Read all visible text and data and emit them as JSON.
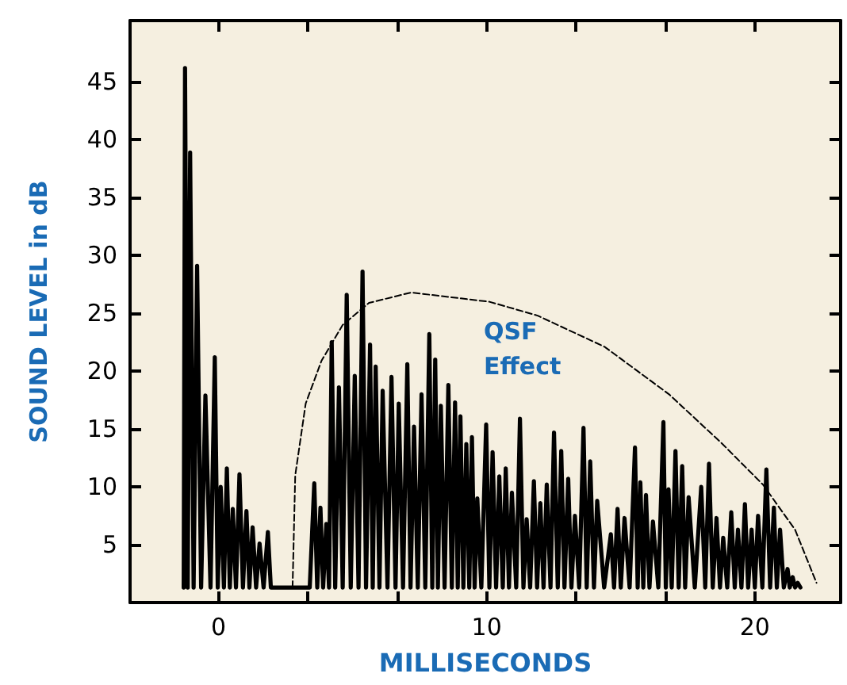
{
  "chart_data": {
    "type": "line",
    "xlabel": "MILLISECONDS",
    "ylabel": "SOUND LEVEL in dB",
    "xlim": [
      -3.3,
      23.2
    ],
    "ylim": [
      0,
      50.3
    ],
    "xticks": [
      {
        "value": 0,
        "label": "0"
      },
      {
        "value": 3.33,
        "label": null
      },
      {
        "value": 6.67,
        "label": null
      },
      {
        "value": 10,
        "label": "10"
      },
      {
        "value": 13.33,
        "label": null
      },
      {
        "value": 16.67,
        "label": null
      },
      {
        "value": 20,
        "label": "20"
      }
    ],
    "yticks": [
      5,
      10,
      15,
      20,
      25,
      30,
      35,
      40,
      45
    ],
    "grid": false,
    "marker": "none",
    "annotations": [
      "QSF\nEffect"
    ],
    "series": [
      {
        "color": "#000000",
        "line_style": "solid",
        "x": [
          -1.3,
          -1.25,
          -1.15,
          -1.06,
          -0.93,
          -0.8,
          -0.65,
          -0.49,
          -0.3,
          -0.14,
          -0.03,
          0.08,
          0.2,
          0.31,
          0.42,
          0.53,
          0.65,
          0.78,
          0.91,
          1.04,
          1.15,
          1.27,
          1.4,
          1.53,
          1.68,
          1.84,
          1.95,
          3.4,
          3.57,
          3.68,
          3.8,
          3.9,
          4.02,
          4.12,
          4.22,
          4.35,
          4.49,
          4.63,
          4.78,
          4.93,
          5.08,
          5.22,
          5.37,
          5.5,
          5.65,
          5.75,
          5.86,
          6.0,
          6.12,
          6.3,
          6.45,
          6.6,
          6.72,
          6.88,
          7.04,
          7.16,
          7.29,
          7.43,
          7.57,
          7.71,
          7.86,
          7.97,
          8.08,
          8.18,
          8.29,
          8.43,
          8.57,
          8.7,
          8.82,
          8.92,
          9.02,
          9.13,
          9.24,
          9.35,
          9.45,
          9.55,
          9.65,
          9.8,
          9.98,
          10.1,
          10.22,
          10.35,
          10.47,
          10.6,
          10.71,
          10.83,
          10.94,
          11.1,
          11.24,
          11.37,
          11.49,
          11.62,
          11.76,
          11.88,
          12.0,
          12.12,
          12.24,
          12.38,
          12.51,
          12.65,
          12.78,
          12.9,
          13.04,
          13.16,
          13.29,
          13.45,
          13.61,
          13.73,
          13.86,
          14.0,
          14.12,
          14.38,
          14.63,
          14.75,
          14.88,
          15.0,
          15.14,
          15.33,
          15.53,
          15.63,
          15.73,
          15.84,
          15.94,
          16.07,
          16.2,
          16.4,
          16.59,
          16.68,
          16.78,
          16.9,
          17.04,
          17.16,
          17.29,
          17.4,
          17.53,
          17.76,
          18.0,
          18.15,
          18.29,
          18.43,
          18.57,
          18.7,
          18.82,
          18.97,
          19.12,
          19.25,
          19.37,
          19.5,
          19.63,
          19.75,
          19.88,
          20.0,
          20.12,
          20.28,
          20.43,
          20.57,
          20.71,
          20.82,
          20.94,
          21.08,
          21.22,
          21.3,
          21.41,
          21.5,
          21.6,
          21.7
        ],
        "values": [
          1.3,
          46.2,
          1.3,
          38.9,
          1.3,
          29.1,
          1.3,
          17.9,
          1.3,
          21.2,
          1.3,
          10.0,
          1.3,
          11.6,
          1.3,
          8.1,
          1.3,
          11.1,
          1.3,
          7.9,
          1.3,
          6.5,
          1.3,
          5.1,
          1.3,
          6.1,
          1.3,
          1.3,
          10.3,
          1.3,
          8.2,
          1.3,
          6.8,
          1.3,
          22.5,
          1.3,
          18.6,
          1.3,
          26.6,
          1.3,
          19.6,
          1.3,
          28.6,
          1.3,
          22.3,
          1.3,
          20.4,
          1.3,
          18.3,
          1.3,
          19.5,
          1.3,
          17.2,
          1.3,
          20.6,
          1.3,
          15.2,
          1.3,
          18.0,
          1.3,
          23.2,
          1.3,
          21.0,
          1.3,
          17.0,
          1.3,
          18.8,
          1.3,
          17.3,
          1.3,
          16.1,
          1.3,
          13.7,
          1.3,
          14.3,
          1.3,
          9.0,
          1.3,
          15.4,
          1.3,
          13.0,
          1.3,
          10.9,
          1.3,
          11.6,
          1.3,
          9.5,
          1.3,
          15.9,
          1.3,
          7.2,
          1.3,
          10.5,
          1.3,
          8.6,
          1.3,
          10.2,
          1.3,
          14.7,
          1.3,
          13.1,
          1.3,
          10.7,
          1.3,
          7.5,
          1.3,
          15.1,
          1.3,
          12.2,
          1.3,
          8.8,
          1.3,
          5.9,
          1.3,
          8.1,
          1.3,
          7.3,
          1.3,
          13.4,
          1.3,
          10.4,
          1.3,
          9.3,
          1.3,
          7.0,
          1.3,
          15.6,
          1.3,
          9.8,
          1.3,
          13.1,
          1.3,
          11.8,
          1.3,
          9.1,
          1.3,
          10.0,
          1.3,
          12.0,
          1.3,
          7.3,
          1.3,
          5.6,
          1.3,
          7.8,
          1.3,
          6.3,
          1.3,
          8.5,
          1.3,
          6.3,
          1.3,
          7.5,
          1.3,
          11.5,
          1.3,
          8.2,
          1.3,
          6.3,
          1.3,
          2.9,
          1.3,
          2.2,
          1.3,
          1.7,
          1.3
        ]
      },
      {
        "color": "#000000",
        "line_style": "dashed",
        "x": [
          2.76,
          2.86,
          3.25,
          3.84,
          4.63,
          5.61,
          7.18,
          10.1,
          11.9,
          14.4,
          16.8,
          18.75,
          20.3,
          21.5,
          22.3
        ],
        "values": [
          1.3,
          11.0,
          17.2,
          20.9,
          24.0,
          25.9,
          26.8,
          26.0,
          24.8,
          22.1,
          18.0,
          13.8,
          10.2,
          6.3,
          1.7
        ]
      }
    ]
  }
}
